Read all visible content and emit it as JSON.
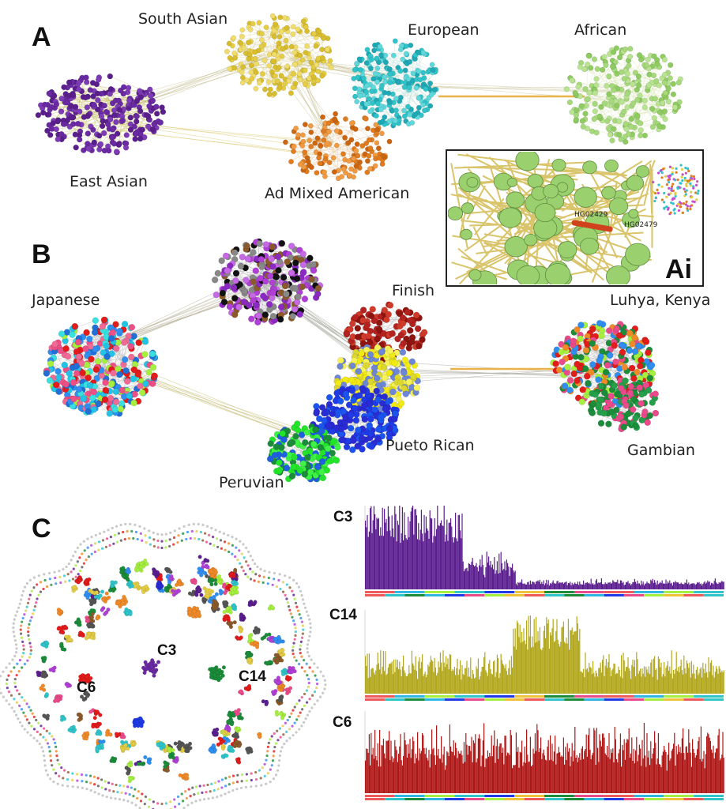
{
  "panel_a": {
    "letter": "A",
    "clusters": [
      {
        "name": "East Asian",
        "color": "#6a2aa3"
      },
      {
        "name": "South Asian",
        "color": "#e4cd45"
      },
      {
        "name": "European",
        "color": "#2fc4c9"
      },
      {
        "name": "African",
        "color": "#a6d97c"
      },
      {
        "name": "Ad Mixed American",
        "color": "#e07b1f"
      }
    ],
    "inset": {
      "label": "Ai",
      "node_1": "HG02429",
      "node_2": "HG02479"
    }
  },
  "panel_b": {
    "letter": "B",
    "populations": [
      "Japanese",
      "Finish",
      "Luhya, Kenya",
      "Pueto Rican",
      "Peruvian",
      "Gambian"
    ]
  },
  "panel_c": {
    "letter": "C",
    "network_labels": [
      "C3",
      "C14",
      "C6"
    ],
    "histograms": [
      {
        "label": "C3",
        "color": "#5b1e8f"
      },
      {
        "label": "C14",
        "color": "#b3a81d"
      },
      {
        "label": "C6",
        "color": "#b01818"
      }
    ]
  }
}
